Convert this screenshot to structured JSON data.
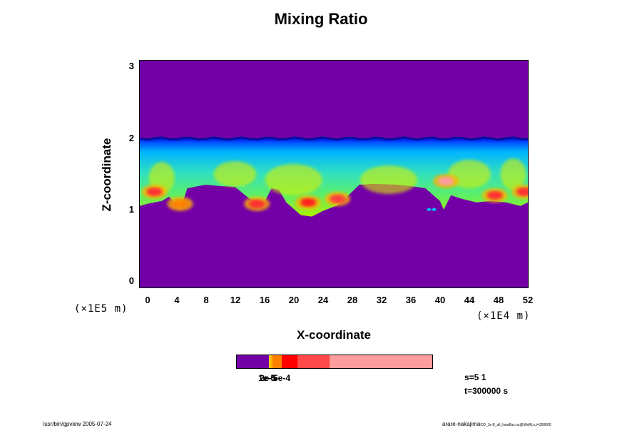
{
  "chart_data": {
    "type": "heatmap",
    "title": "Mixing Ratio",
    "xlabel": "X-coordinate",
    "ylabel": "Z-coordinate",
    "x_scale_label": "(×1E4 m)",
    "y_scale_label": "(×1E5 m)",
    "xlim": [
      -1,
      52
    ],
    "ylim": [
      -0.1,
      3.1
    ],
    "x_ticks": [
      "0",
      "4",
      "8",
      "12",
      "16",
      "20",
      "24",
      "28",
      "32",
      "36",
      "40",
      "44",
      "48",
      "52"
    ],
    "y_ticks": [
      "0",
      "1",
      "2",
      "3"
    ],
    "grid": false,
    "background_color": "#7300a6",
    "colorbar": {
      "overlapping_tick_labels": [
        "1e-5",
        "2e-5",
        "5e-4"
      ],
      "segments": [
        {
          "fraction": 0.165,
          "color": "#7300a6"
        },
        {
          "fraction": 0.007,
          "color": "#ffd000"
        },
        {
          "fraction": 0.011,
          "color": "#ffb000"
        },
        {
          "fraction": 0.047,
          "color": "#ff8000"
        },
        {
          "fraction": 0.08,
          "color": "#ff0000"
        },
        {
          "fraction": 0.165,
          "color": "#ff4848"
        },
        {
          "fraction": 0.525,
          "color": "#ff9c9c"
        }
      ]
    },
    "cloud_layer": {
      "z_top": 2.0,
      "z_bottom_approx": 1.3
    },
    "hot_spots": [
      {
        "x": 1,
        "z": 1.25,
        "color": "#ff3030"
      },
      {
        "x": 4.5,
        "z": 1.08,
        "color": "#ff8000"
      },
      {
        "x": 15,
        "z": 1.08,
        "color": "#ff3030"
      },
      {
        "x": 22,
        "z": 1.1,
        "color": "#ff2020"
      },
      {
        "x": 26,
        "z": 1.15,
        "color": "#ff4040"
      },
      {
        "x": 40.8,
        "z": 1.4,
        "color": "#ff9c9c"
      },
      {
        "x": 47.5,
        "z": 1.2,
        "color": "#ff3030"
      },
      {
        "x": 51.5,
        "z": 1.25,
        "color": "#ff3030"
      }
    ]
  },
  "info": {
    "s_line": "s=5 1",
    "t_line": "t=300000 s"
  },
  "footer": {
    "left": "/usr/bin/gpview 2005-07-24",
    "right_main": "arare-nakajima",
    "right_small": "CO_1e-8_all_heatflux.nc@MixRt,x,t=300000"
  }
}
